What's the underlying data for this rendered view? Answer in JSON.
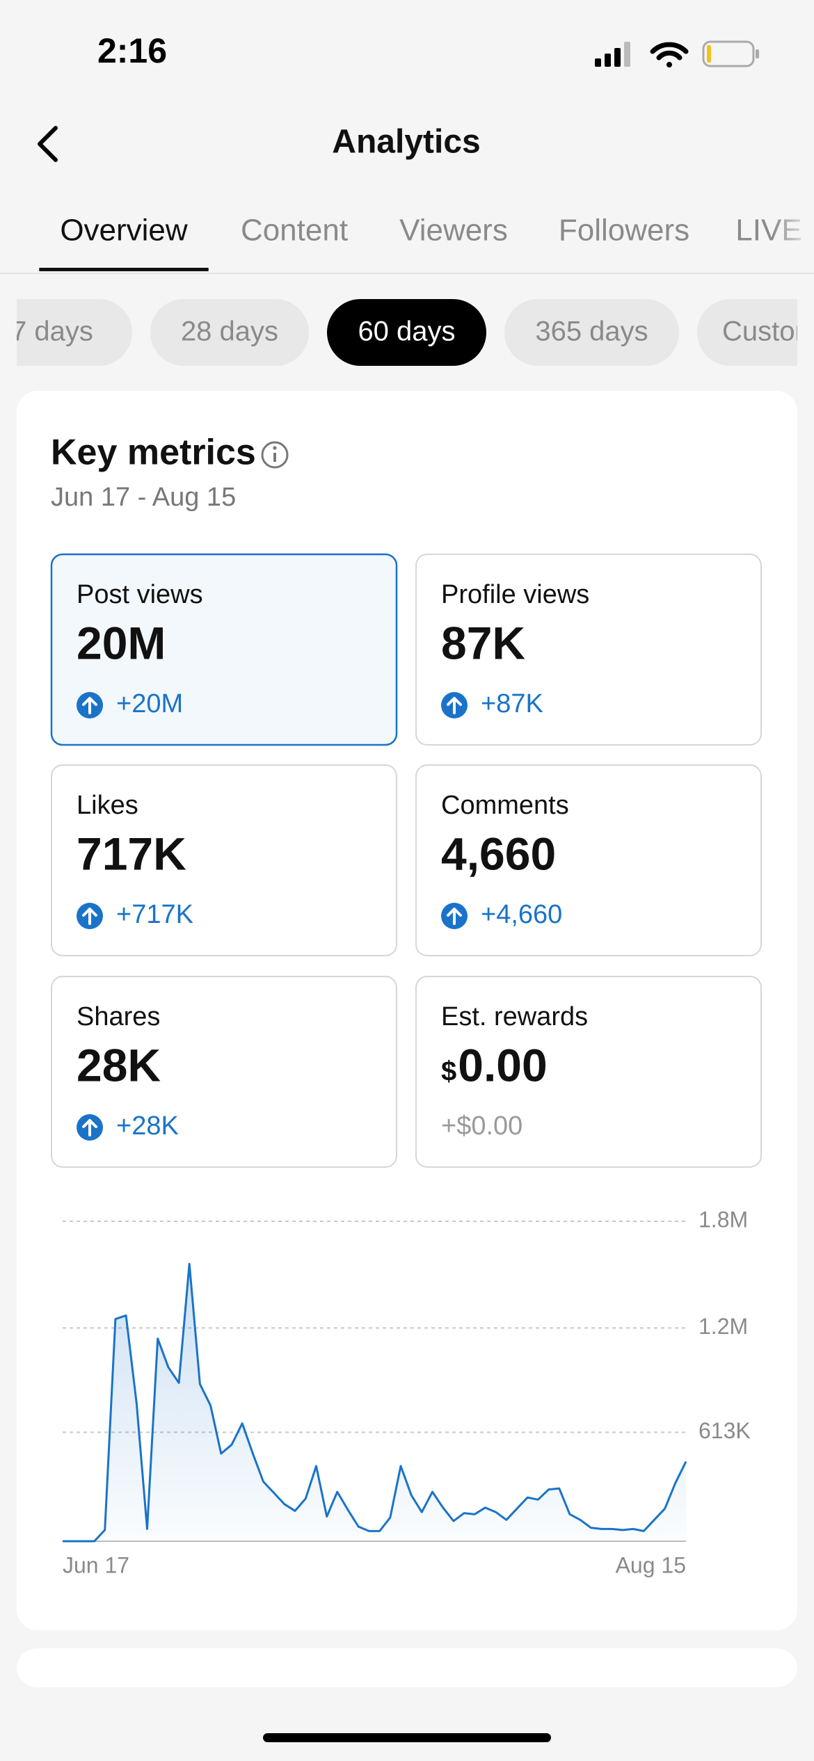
{
  "status_bar": {
    "time": "2:16"
  },
  "header": {
    "title": "Analytics"
  },
  "tabs": {
    "items": [
      "Overview",
      "Content",
      "Viewers",
      "Followers",
      "LIVE"
    ],
    "selected": 0
  },
  "periods": {
    "items": [
      "7 days",
      "28 days",
      "60 days",
      "365 days",
      "Custom"
    ],
    "selected": 2
  },
  "card": {
    "title": "Key metrics",
    "date_range": "Jun 17 - Aug 15",
    "metrics": [
      {
        "label": "Post views",
        "value": "20M",
        "delta": "+20M",
        "trend": "up"
      },
      {
        "label": "Profile views",
        "value": "87K",
        "delta": "+87K",
        "trend": "up"
      },
      {
        "label": "Likes",
        "value": "717K",
        "delta": "+717K",
        "trend": "up"
      },
      {
        "label": "Comments",
        "value": "4,660",
        "delta": "+4,660",
        "trend": "up"
      },
      {
        "label": "Shares",
        "value": "28K",
        "delta": "+28K",
        "trend": "up"
      },
      {
        "label": "Est. rewards",
        "currency": "$",
        "value": "0.00",
        "delta": "+$0.00",
        "trend": null
      }
    ],
    "selected_metric": 0
  },
  "chart_data": {
    "type": "line",
    "color": "#1a73c8",
    "categories": [
      "Jun 17",
      null,
      null,
      null,
      null,
      null,
      null,
      null,
      null,
      null,
      null,
      null,
      null,
      null,
      null,
      null,
      null,
      null,
      null,
      null,
      null,
      null,
      null,
      null,
      null,
      null,
      null,
      null,
      null,
      null,
      null,
      null,
      null,
      null,
      null,
      null,
      null,
      null,
      null,
      null,
      null,
      null,
      null,
      null,
      null,
      null,
      null,
      null,
      null,
      null,
      null,
      null,
      null,
      null,
      null,
      null,
      null,
      null,
      null,
      "Aug 15"
    ],
    "values": [
      0,
      0,
      0,
      0,
      63000,
      1250000,
      1270000,
      777000,
      69000,
      1140000,
      979000,
      891000,
      1560000,
      884000,
      764000,
      493000,
      543000,
      663000,
      493000,
      335000,
      272000,
      208000,
      171000,
      240000,
      423000,
      139000,
      278000,
      177000,
      82000,
      57000,
      57000,
      133000,
      423000,
      259000,
      164000,
      278000,
      189000,
      114000,
      158000,
      152000,
      189000,
      164000,
      120000,
      183000,
      246000,
      234000,
      291000,
      297000,
      152000,
      120000,
      76000,
      69000,
      69000,
      63000,
      69000,
      57000,
      120000,
      183000,
      328000,
      448000
    ],
    "ylim": [
      0,
      1800000
    ],
    "yticks": [
      {
        "value": 613000,
        "label": "613K"
      },
      {
        "value": 1200000,
        "label": "1.2M"
      },
      {
        "value": 1800000,
        "label": "1.8M"
      }
    ],
    "grid": true
  }
}
